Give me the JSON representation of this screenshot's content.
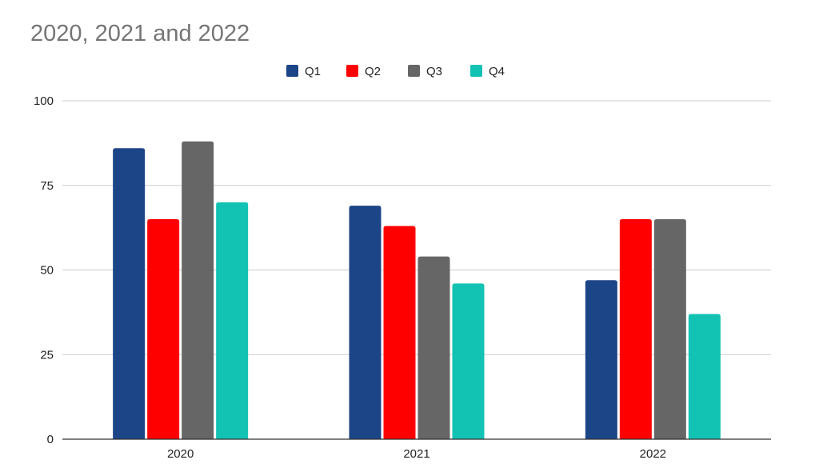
{
  "chart_data": {
    "type": "bar",
    "title": "2020, 2021 and 2022",
    "categories": [
      "2020",
      "2021",
      "2022"
    ],
    "series": [
      {
        "name": "Q1",
        "color": "#1c4587",
        "values": [
          86,
          69,
          47
        ]
      },
      {
        "name": "Q2",
        "color": "#ff0000",
        "values": [
          65,
          63,
          65
        ]
      },
      {
        "name": "Q3",
        "color": "#666666",
        "values": [
          88,
          54,
          65
        ]
      },
      {
        "name": "Q4",
        "color": "#12c2b3",
        "values": [
          70,
          46,
          37
        ]
      }
    ],
    "xlabel": "",
    "ylabel": "",
    "ylim": [
      0,
      100
    ],
    "yticks": [
      "0",
      "25",
      "50",
      "75",
      "100"
    ],
    "grid": true,
    "legend_position": "top-center"
  }
}
